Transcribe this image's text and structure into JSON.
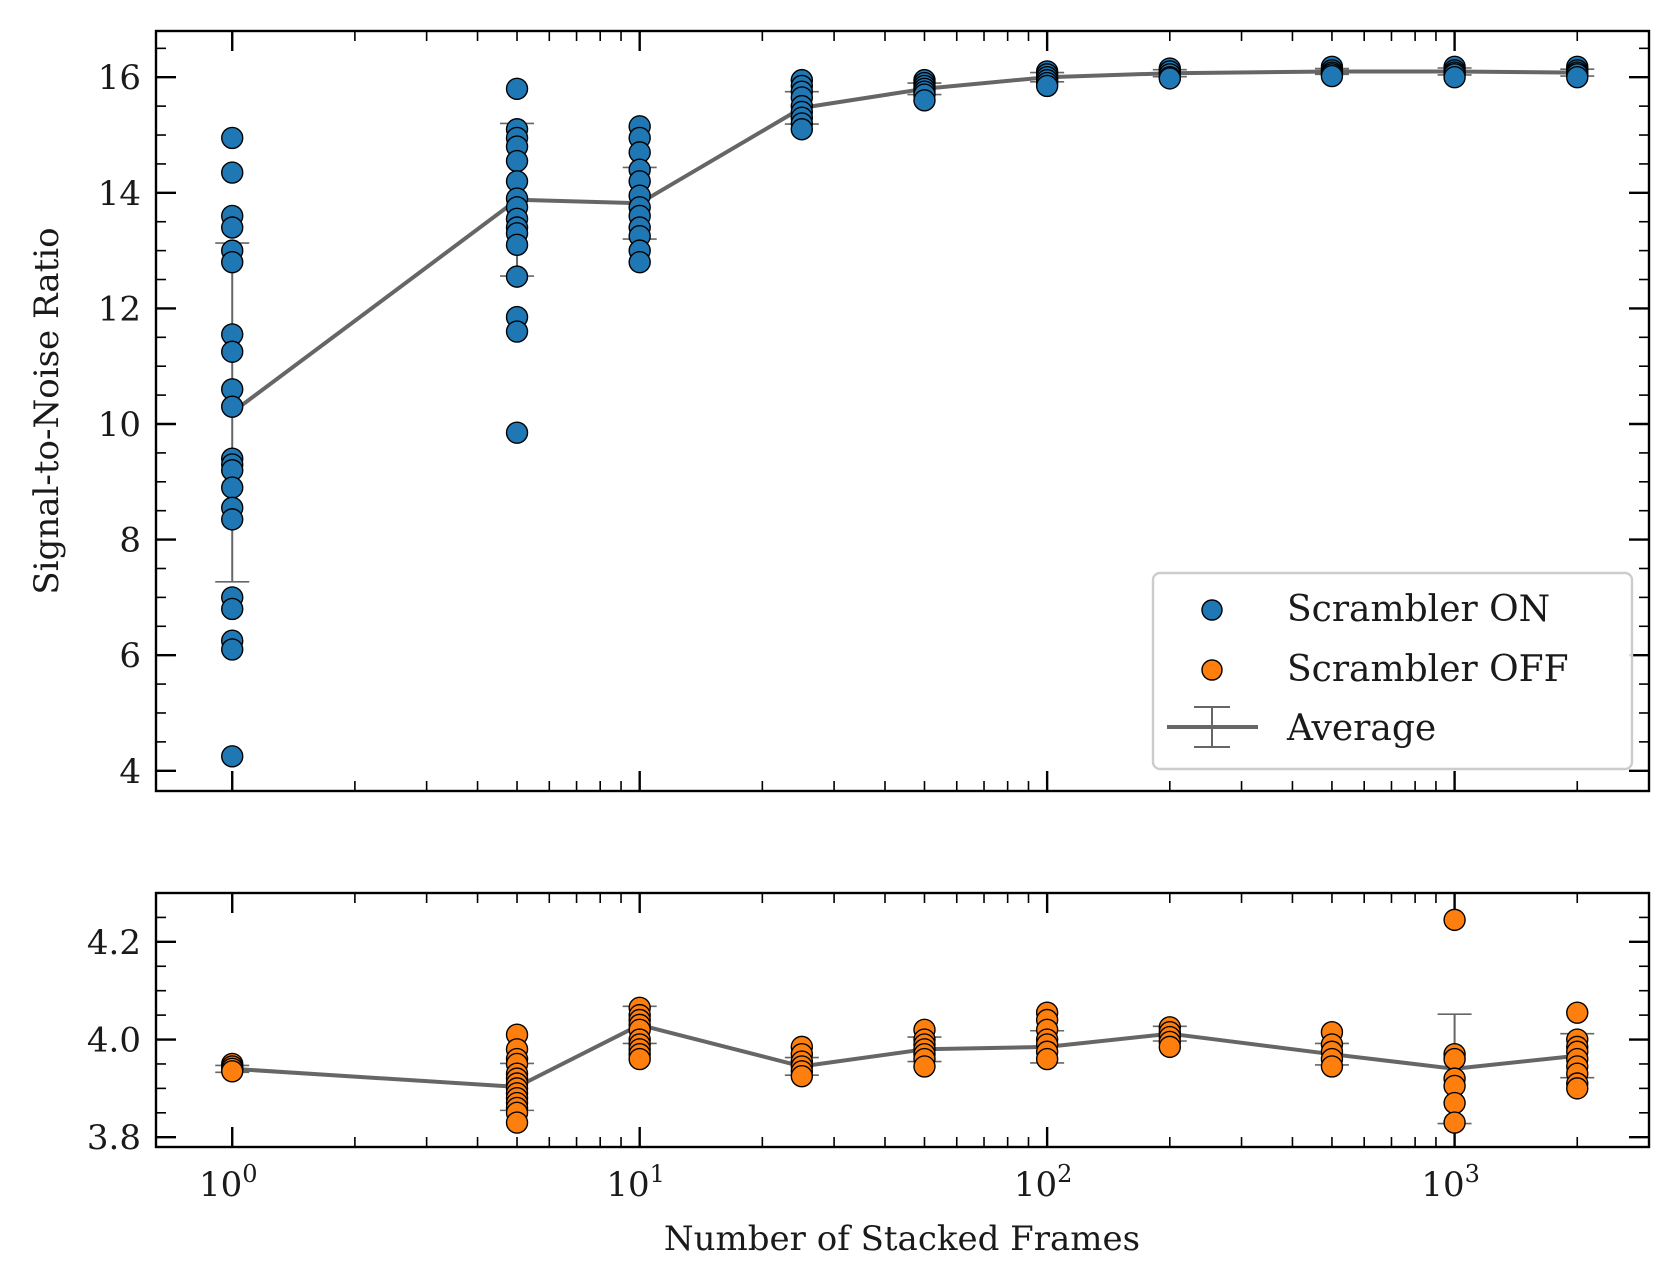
{
  "chart_data": [
    {
      "type": "scatter",
      "panel": "top",
      "ylabel": "Signal-to-Noise Ratio",
      "xscale": "log",
      "xlim": [
        0.65,
        3000
      ],
      "ylim": [
        3.65,
        16.8
      ],
      "yticks": [
        4,
        6,
        8,
        10,
        12,
        14,
        16
      ],
      "ytick_labels": [
        "4",
        "6",
        "8",
        "10",
        "12",
        "14",
        "16"
      ],
      "series": [
        {
          "name": "Scrambler ON",
          "color": "#1f77b4",
          "points": [
            [
              1,
              14.95
            ],
            [
              1,
              14.35
            ],
            [
              1,
              13.6
            ],
            [
              1,
              13.4
            ],
            [
              1,
              13.0
            ],
            [
              1,
              12.8
            ],
            [
              1,
              11.55
            ],
            [
              1,
              11.25
            ],
            [
              1,
              10.6
            ],
            [
              1,
              10.3
            ],
            [
              1,
              9.4
            ],
            [
              1,
              9.3
            ],
            [
              1,
              9.2
            ],
            [
              1,
              8.9
            ],
            [
              1,
              8.55
            ],
            [
              1,
              8.35
            ],
            [
              1,
              7.0
            ],
            [
              1,
              6.8
            ],
            [
              1,
              6.25
            ],
            [
              1,
              6.1
            ],
            [
              1,
              4.25
            ],
            [
              5,
              15.8
            ],
            [
              5,
              15.1
            ],
            [
              5,
              14.95
            ],
            [
              5,
              14.8
            ],
            [
              5,
              14.55
            ],
            [
              5,
              14.2
            ],
            [
              5,
              13.9
            ],
            [
              5,
              13.75
            ],
            [
              5,
              13.55
            ],
            [
              5,
              13.4
            ],
            [
              5,
              13.3
            ],
            [
              5,
              13.1
            ],
            [
              5,
              12.55
            ],
            [
              5,
              11.85
            ],
            [
              5,
              11.6
            ],
            [
              5,
              9.85
            ],
            [
              10,
              15.15
            ],
            [
              10,
              14.95
            ],
            [
              10,
              14.7
            ],
            [
              10,
              14.4
            ],
            [
              10,
              14.2
            ],
            [
              10,
              13.95
            ],
            [
              10,
              13.75
            ],
            [
              10,
              13.6
            ],
            [
              10,
              13.4
            ],
            [
              10,
              13.25
            ],
            [
              10,
              13.0
            ],
            [
              10,
              12.8
            ],
            [
              25,
              15.95
            ],
            [
              25,
              15.85
            ],
            [
              25,
              15.75
            ],
            [
              25,
              15.65
            ],
            [
              25,
              15.5
            ],
            [
              25,
              15.4
            ],
            [
              25,
              15.3
            ],
            [
              25,
              15.2
            ],
            [
              25,
              15.1
            ],
            [
              50,
              15.95
            ],
            [
              50,
              15.9
            ],
            [
              50,
              15.85
            ],
            [
              50,
              15.8
            ],
            [
              50,
              15.75
            ],
            [
              50,
              15.7
            ],
            [
              50,
              15.6
            ],
            [
              100,
              16.1
            ],
            [
              100,
              16.05
            ],
            [
              100,
              16.0
            ],
            [
              100,
              15.95
            ],
            [
              100,
              15.9
            ],
            [
              100,
              15.85
            ],
            [
              200,
              16.15
            ],
            [
              200,
              16.1
            ],
            [
              200,
              16.05
            ],
            [
              200,
              16.0
            ],
            [
              200,
              15.98
            ],
            [
              500,
              16.18
            ],
            [
              500,
              16.12
            ],
            [
              500,
              16.08
            ],
            [
              500,
              16.05
            ],
            [
              500,
              16.02
            ],
            [
              1000,
              16.18
            ],
            [
              1000,
              16.12
            ],
            [
              1000,
              16.08
            ],
            [
              1000,
              16.05
            ],
            [
              1000,
              16.0
            ],
            [
              2000,
              16.18
            ],
            [
              2000,
              16.12
            ],
            [
              2000,
              16.08
            ],
            [
              2000,
              16.05
            ],
            [
              2000,
              16.0
            ]
          ]
        },
        {
          "name": "Average",
          "color": "#666666",
          "x": [
            1,
            5,
            10,
            25,
            50,
            100,
            200,
            500,
            1000,
            2000
          ],
          "y": [
            10.2,
            13.88,
            13.82,
            15.47,
            15.8,
            16.0,
            16.07,
            16.1,
            16.1,
            16.08
          ],
          "yerr": [
            2.93,
            1.32,
            0.62,
            0.28,
            0.1,
            0.08,
            0.06,
            0.05,
            0.06,
            0.06
          ]
        }
      ],
      "legend": {
        "placement": "lower-right",
        "entries": [
          {
            "label": "Scrambler ON",
            "marker": "circle",
            "color": "#1f77b4"
          },
          {
            "label": "Scrambler OFF",
            "marker": "circle",
            "color": "#ff7f0e"
          },
          {
            "label": "Average",
            "marker": "errorbar-line",
            "color": "#666666"
          }
        ]
      }
    },
    {
      "type": "scatter",
      "panel": "bottom",
      "xlabel": "Number of Stacked Frames",
      "xscale": "log",
      "xlim": [
        0.65,
        3000
      ],
      "ylim": [
        3.78,
        4.3
      ],
      "xticks": [
        1,
        10,
        100,
        1000
      ],
      "xtick_labels": [
        {
          "base": "10",
          "exp": "0"
        },
        {
          "base": "10",
          "exp": "1"
        },
        {
          "base": "10",
          "exp": "2"
        },
        {
          "base": "10",
          "exp": "3"
        }
      ],
      "yticks": [
        3.8,
        4.0,
        4.2
      ],
      "ytick_labels": [
        "3.8",
        "4.0",
        "4.2"
      ],
      "series": [
        {
          "name": "Scrambler OFF",
          "color": "#ff7f0e",
          "points": [
            [
              1,
              3.95
            ],
            [
              1,
              3.945
            ],
            [
              1,
              3.94
            ],
            [
              1,
              3.935
            ],
            [
              5,
              4.01
            ],
            [
              5,
              3.98
            ],
            [
              5,
              3.96
            ],
            [
              5,
              3.95
            ],
            [
              5,
              3.93
            ],
            [
              5,
              3.92
            ],
            [
              5,
              3.91
            ],
            [
              5,
              3.9
            ],
            [
              5,
              3.89
            ],
            [
              5,
              3.88
            ],
            [
              5,
              3.87
            ],
            [
              5,
              3.86
            ],
            [
              5,
              3.85
            ],
            [
              5,
              3.83
            ],
            [
              10,
              4.065
            ],
            [
              10,
              4.05
            ],
            [
              10,
              4.04
            ],
            [
              10,
              4.03
            ],
            [
              10,
              4.02
            ],
            [
              10,
              4.0
            ],
            [
              10,
              3.99
            ],
            [
              10,
              3.98
            ],
            [
              10,
              3.97
            ],
            [
              10,
              3.96
            ],
            [
              25,
              3.985
            ],
            [
              25,
              3.97
            ],
            [
              25,
              3.955
            ],
            [
              25,
              3.945
            ],
            [
              25,
              3.935
            ],
            [
              25,
              3.925
            ],
            [
              50,
              4.02
            ],
            [
              50,
              4.0
            ],
            [
              50,
              3.99
            ],
            [
              50,
              3.98
            ],
            [
              50,
              3.97
            ],
            [
              50,
              3.96
            ],
            [
              50,
              3.945
            ],
            [
              100,
              4.055
            ],
            [
              100,
              4.04
            ],
            [
              100,
              4.02
            ],
            [
              100,
              4.0
            ],
            [
              100,
              3.99
            ],
            [
              100,
              3.975
            ],
            [
              100,
              3.96
            ],
            [
              200,
              4.025
            ],
            [
              200,
              4.015
            ],
            [
              200,
              4.005
            ],
            [
              200,
              3.995
            ],
            [
              200,
              3.985
            ],
            [
              500,
              4.015
            ],
            [
              500,
              3.99
            ],
            [
              500,
              3.975
            ],
            [
              500,
              3.96
            ],
            [
              500,
              3.945
            ],
            [
              1000,
              4.245
            ],
            [
              1000,
              3.97
            ],
            [
              1000,
              3.96
            ],
            [
              1000,
              3.92
            ],
            [
              1000,
              3.905
            ],
            [
              1000,
              3.87
            ],
            [
              1000,
              3.83
            ],
            [
              2000,
              4.055
            ],
            [
              2000,
              4.0
            ],
            [
              2000,
              3.985
            ],
            [
              2000,
              3.975
            ],
            [
              2000,
              3.96
            ],
            [
              2000,
              3.945
            ],
            [
              2000,
              3.93
            ],
            [
              2000,
              3.91
            ],
            [
              2000,
              3.9
            ]
          ]
        },
        {
          "name": "Average",
          "color": "#666666",
          "x": [
            1,
            5,
            10,
            25,
            50,
            100,
            200,
            500,
            1000,
            2000
          ],
          "y": [
            3.94,
            3.903,
            4.03,
            3.945,
            3.98,
            3.985,
            4.012,
            3.97,
            3.94,
            3.967
          ],
          "yerr": [
            0.007,
            0.048,
            0.038,
            0.018,
            0.025,
            0.033,
            0.015,
            0.022,
            0.112,
            0.045
          ]
        }
      ]
    }
  ]
}
